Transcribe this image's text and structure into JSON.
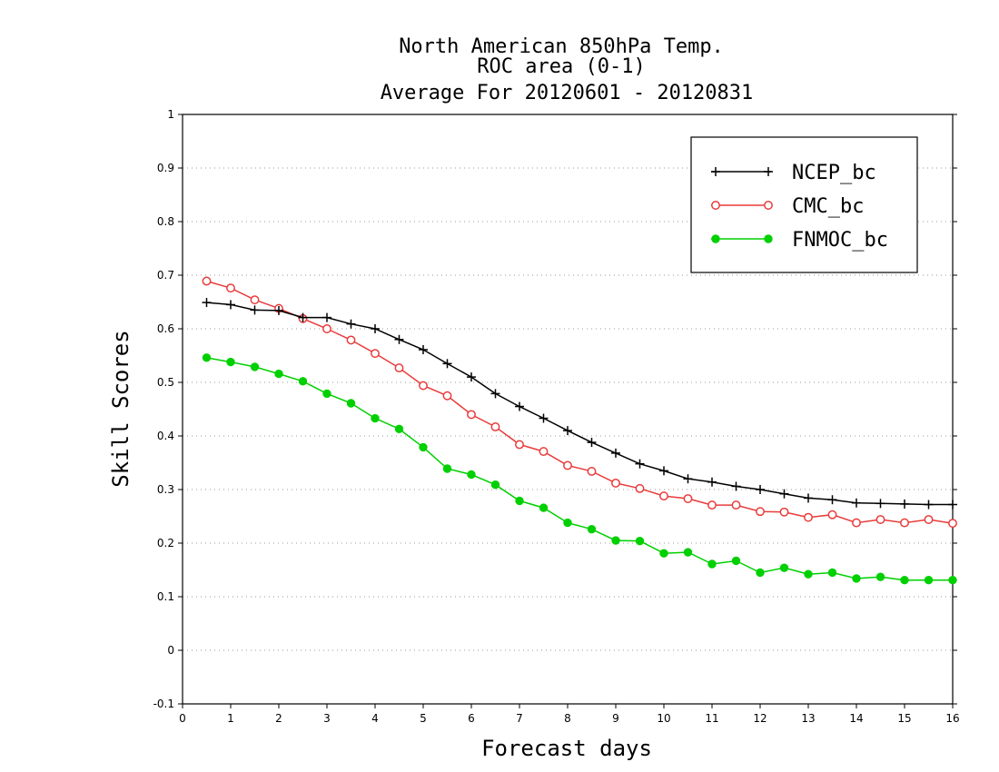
{
  "chart_data": {
    "type": "line",
    "title": [
      "North American 850hPa Temp.",
      "ROC area (0-1)",
      "Average For 20120601 - 20120831"
    ],
    "xlabel": "Forecast days",
    "ylabel": "Skill Scores",
    "xlim": [
      0,
      16
    ],
    "ylim": [
      -0.1,
      1
    ],
    "xticks": [
      "0",
      "1",
      "2",
      "3",
      "4",
      "5",
      "6",
      "7",
      "8",
      "9",
      "10",
      "11",
      "12",
      "13",
      "14",
      "15",
      "16"
    ],
    "yticks": [
      "-0.1",
      "0",
      "0.1",
      "0.2",
      "0.3",
      "0.4",
      "0.5",
      "0.6",
      "0.7",
      "0.8",
      "0.9",
      "1"
    ],
    "grid": "horizontal dotted",
    "legend_position": "top-right",
    "x": [
      0.5,
      1,
      1.5,
      2,
      2.5,
      3,
      3.5,
      4,
      4.5,
      5,
      5.5,
      6,
      6.5,
      7,
      7.5,
      8,
      8.5,
      9,
      9.5,
      10,
      10.5,
      11,
      11.5,
      12,
      12.5,
      13,
      13.5,
      14,
      14.5,
      15,
      15.5,
      16
    ],
    "series": [
      {
        "name": "NCEP_bc",
        "color": "#000000",
        "marker": "plus",
        "values": [
          0.649,
          0.645,
          0.635,
          0.634,
          0.621,
          0.621,
          0.609,
          0.6,
          0.58,
          0.561,
          0.535,
          0.51,
          0.479,
          0.455,
          0.433,
          0.41,
          0.388,
          0.368,
          0.348,
          0.335,
          0.32,
          0.314,
          0.306,
          0.3,
          0.292,
          0.284,
          0.281,
          0.275,
          0.274,
          0.273,
          0.272,
          0.272
        ]
      },
      {
        "name": "CMC_bc",
        "color": "#e83c3c",
        "marker": "open-circle",
        "values": [
          0.689,
          0.676,
          0.654,
          0.638,
          0.619,
          0.6,
          0.579,
          0.554,
          0.527,
          0.494,
          0.475,
          0.44,
          0.417,
          0.384,
          0.371,
          0.345,
          0.334,
          0.312,
          0.302,
          0.288,
          0.283,
          0.271,
          0.271,
          0.259,
          0.258,
          0.248,
          0.253,
          0.238,
          0.244,
          0.238,
          0.244,
          0.237
        ]
      },
      {
        "name": "FNMOC_bc",
        "color": "#00d000",
        "marker": "filled-circle",
        "values": [
          0.546,
          0.538,
          0.529,
          0.516,
          0.502,
          0.479,
          0.461,
          0.433,
          0.413,
          0.379,
          0.339,
          0.328,
          0.309,
          0.279,
          0.266,
          0.238,
          0.226,
          0.205,
          0.204,
          0.181,
          0.183,
          0.161,
          0.167,
          0.145,
          0.154,
          0.142,
          0.145,
          0.134,
          0.137,
          0.131,
          0.131,
          0.131
        ]
      }
    ]
  }
}
